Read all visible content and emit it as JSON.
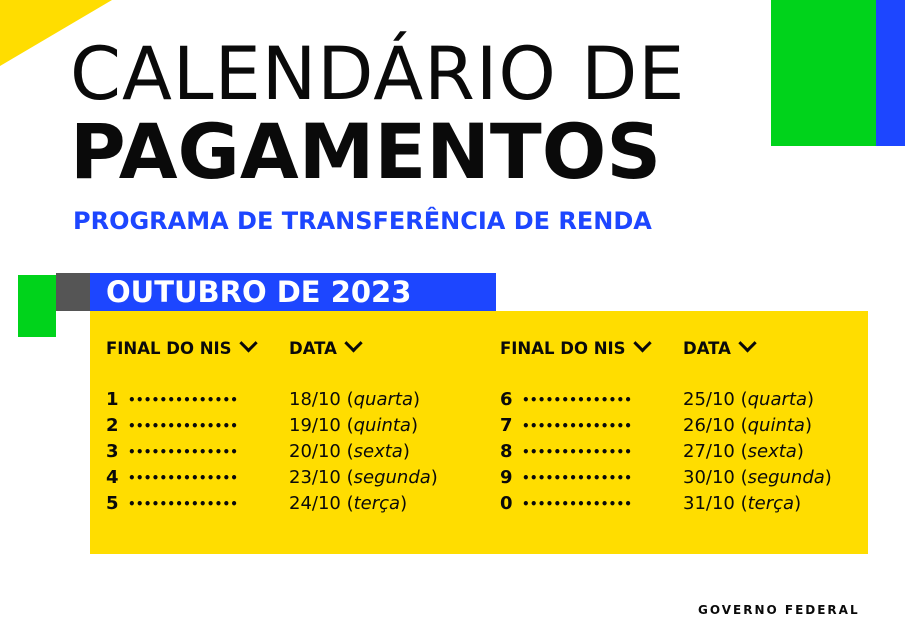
{
  "title": {
    "line1": "CALENDÁRIO DE",
    "line2": "PAGAMENTOS",
    "subtitle": "PROGRAMA DE TRANSFERÊNCIA DE RENDA"
  },
  "month": "OUTUBRO DE 2023",
  "table": {
    "header_nis": "FINAL DO NIS",
    "header_data": "DATA",
    "dots": "••••••••••••••",
    "left": [
      {
        "digit": "1",
        "date": "18/10",
        "weekday": "quarta"
      },
      {
        "digit": "2",
        "date": "19/10",
        "weekday": "quinta"
      },
      {
        "digit": "3",
        "date": "20/10",
        "weekday": "sexta"
      },
      {
        "digit": "4",
        "date": "23/10",
        "weekday": "segunda"
      },
      {
        "digit": "5",
        "date": "24/10",
        "weekday": "terça"
      }
    ],
    "right": [
      {
        "digit": "6",
        "date": "25/10",
        "weekday": "quarta"
      },
      {
        "digit": "7",
        "date": "26/10",
        "weekday": "quinta"
      },
      {
        "digit": "8",
        "date": "27/10",
        "weekday": "sexta"
      },
      {
        "digit": "9",
        "date": "30/10",
        "weekday": "segunda"
      },
      {
        "digit": "0",
        "date": "31/10",
        "weekday": "terça"
      }
    ]
  },
  "footer": "GOVERNO FEDERAL",
  "colors": {
    "yellow": "#FFDD00",
    "green": "#00D31B",
    "blue": "#1D46FF",
    "gray": "#555555",
    "black": "#0a0a0a"
  },
  "icons": {
    "chevron": "chevron-down-icon"
  }
}
